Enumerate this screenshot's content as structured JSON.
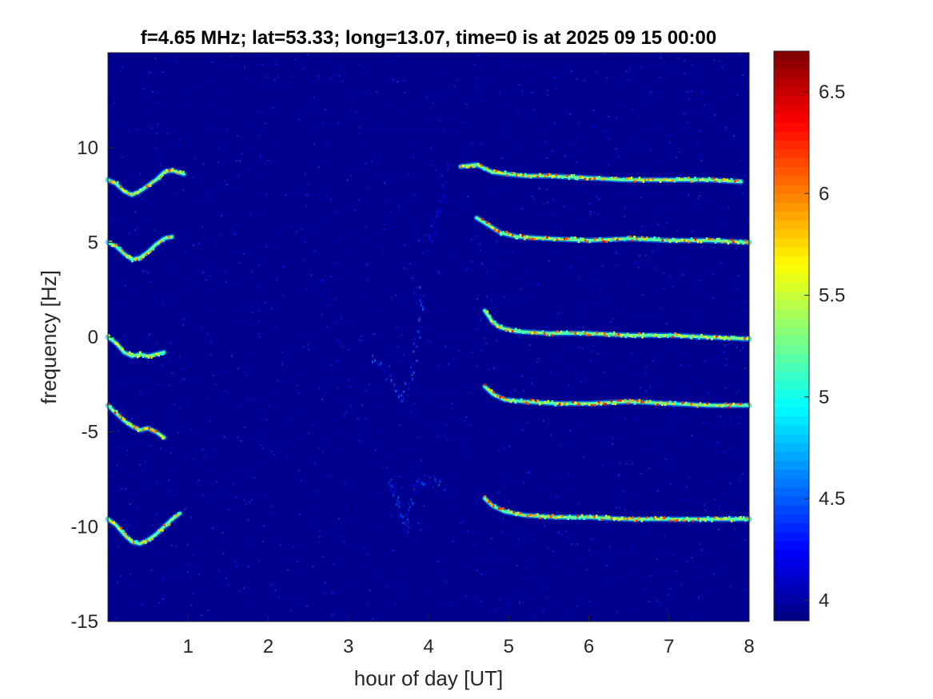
{
  "chart_data": {
    "type": "heatmap",
    "title": "f=4.65 MHz;  lat=53.33; long=13.07, time=0 is at 2025 09 15 00:00",
    "xlabel": "hour of day [UT]",
    "ylabel": "frequency [Hz]",
    "xlim": [
      0,
      8
    ],
    "ylim": [
      -15,
      15
    ],
    "x_ticks": [
      1,
      2,
      3,
      4,
      5,
      6,
      7,
      8
    ],
    "x_tick_labels": [
      "1",
      "2",
      "3",
      "4",
      "5",
      "6",
      "7",
      "8"
    ],
    "y_ticks": [
      -15,
      -10,
      -5,
      0,
      5,
      10
    ],
    "y_tick_labels": [
      "-15",
      "-10",
      "-5",
      "0",
      "5",
      "10"
    ],
    "colorbar": {
      "colormap": "jet",
      "range": [
        3.9,
        6.7
      ],
      "ticks": [
        4,
        4.5,
        5,
        5.5,
        6,
        6.5
      ],
      "tick_labels": [
        "4",
        "4.5",
        "5",
        "5.5",
        "6",
        "6.5"
      ]
    },
    "background_color": "#00008f",
    "traces": [
      {
        "name": "trace +8.5 Hz (early)",
        "points": [
          [
            0.0,
            8.3
          ],
          [
            0.1,
            8.1
          ],
          [
            0.2,
            7.7
          ],
          [
            0.3,
            7.5
          ],
          [
            0.4,
            7.7
          ],
          [
            0.5,
            8.0
          ],
          [
            0.6,
            8.3
          ],
          [
            0.7,
            8.7
          ],
          [
            0.8,
            8.8
          ],
          [
            0.95,
            8.6
          ]
        ],
        "peak": 6.2
      },
      {
        "name": "trace +5 Hz (early)",
        "points": [
          [
            0.0,
            5.0
          ],
          [
            0.1,
            4.8
          ],
          [
            0.2,
            4.4
          ],
          [
            0.3,
            4.1
          ],
          [
            0.4,
            4.2
          ],
          [
            0.5,
            4.5
          ],
          [
            0.6,
            4.9
          ],
          [
            0.7,
            5.2
          ],
          [
            0.8,
            5.3
          ]
        ],
        "peak": 6.0
      },
      {
        "name": "trace 0 Hz (early)",
        "points": [
          [
            0.0,
            0.0
          ],
          [
            0.1,
            -0.3
          ],
          [
            0.2,
            -0.8
          ],
          [
            0.3,
            -1.0
          ],
          [
            0.4,
            -0.9
          ],
          [
            0.5,
            -1.0
          ],
          [
            0.6,
            -0.9
          ],
          [
            0.7,
            -0.8
          ]
        ],
        "peak": 5.9
      },
      {
        "name": "trace -3.7 Hz (early)",
        "points": [
          [
            0.0,
            -3.6
          ],
          [
            0.1,
            -4.0
          ],
          [
            0.2,
            -4.4
          ],
          [
            0.3,
            -4.7
          ],
          [
            0.4,
            -4.9
          ],
          [
            0.5,
            -4.8
          ],
          [
            0.6,
            -5.0
          ],
          [
            0.7,
            -5.3
          ]
        ],
        "peak": 6.3
      },
      {
        "name": "trace -10 Hz (early)",
        "points": [
          [
            0.0,
            -9.6
          ],
          [
            0.1,
            -9.9
          ],
          [
            0.2,
            -10.4
          ],
          [
            0.3,
            -10.8
          ],
          [
            0.4,
            -10.9
          ],
          [
            0.5,
            -10.7
          ],
          [
            0.6,
            -10.4
          ],
          [
            0.7,
            -10.0
          ],
          [
            0.8,
            -9.6
          ],
          [
            0.9,
            -9.3
          ]
        ],
        "peak": 6.2
      },
      {
        "name": "trace +8.5 Hz (late)",
        "points": [
          [
            4.4,
            9.0
          ],
          [
            4.6,
            9.1
          ],
          [
            4.8,
            8.7
          ],
          [
            5.0,
            8.6
          ],
          [
            5.2,
            8.5
          ],
          [
            5.5,
            8.5
          ],
          [
            6.0,
            8.4
          ],
          [
            6.4,
            8.3
          ],
          [
            7.0,
            8.3
          ],
          [
            7.5,
            8.3
          ],
          [
            7.9,
            8.2
          ]
        ],
        "peak": 6.3
      },
      {
        "name": "trace +5 Hz (late)",
        "points": [
          [
            4.6,
            6.3
          ],
          [
            4.75,
            5.9
          ],
          [
            4.9,
            5.5
          ],
          [
            5.1,
            5.3
          ],
          [
            5.5,
            5.2
          ],
          [
            6.0,
            5.1
          ],
          [
            6.5,
            5.2
          ],
          [
            7.0,
            5.1
          ],
          [
            7.5,
            5.1
          ],
          [
            8.0,
            5.0
          ]
        ],
        "peak": 6.4
      },
      {
        "name": "trace 0 Hz (late)",
        "points": [
          [
            4.7,
            1.4
          ],
          [
            4.8,
            0.8
          ],
          [
            4.9,
            0.5
          ],
          [
            5.1,
            0.3
          ],
          [
            5.5,
            0.2
          ],
          [
            6.0,
            0.2
          ],
          [
            6.5,
            0.1
          ],
          [
            7.0,
            0.1
          ],
          [
            7.5,
            0.0
          ],
          [
            8.0,
            -0.1
          ]
        ],
        "peak": 6.3
      },
      {
        "name": "trace -3.5 Hz (late)",
        "points": [
          [
            4.7,
            -2.6
          ],
          [
            4.8,
            -3.0
          ],
          [
            4.95,
            -3.3
          ],
          [
            5.2,
            -3.4
          ],
          [
            5.6,
            -3.5
          ],
          [
            6.0,
            -3.5
          ],
          [
            6.5,
            -3.4
          ],
          [
            7.0,
            -3.5
          ],
          [
            7.5,
            -3.6
          ],
          [
            8.0,
            -3.6
          ]
        ],
        "peak": 6.4
      },
      {
        "name": "trace -9.5 Hz (late)",
        "points": [
          [
            4.7,
            -8.5
          ],
          [
            4.8,
            -8.9
          ],
          [
            4.95,
            -9.2
          ],
          [
            5.2,
            -9.4
          ],
          [
            5.6,
            -9.5
          ],
          [
            6.0,
            -9.5
          ],
          [
            6.5,
            -9.6
          ],
          [
            7.0,
            -9.6
          ],
          [
            7.5,
            -9.6
          ],
          [
            8.0,
            -9.6
          ]
        ],
        "peak": 6.3
      }
    ],
    "faint_traces": [
      {
        "name": "diffuse 2-4 h",
        "points": [
          [
            3.3,
            -1.0
          ],
          [
            3.5,
            -2.0
          ],
          [
            3.65,
            -3.5
          ],
          [
            3.8,
            -1.5
          ],
          [
            3.9,
            1.5
          ],
          [
            3.85,
            2.5
          ]
        ],
        "peak": 4.7
      },
      {
        "name": "diffuse 3.6-4.2 h low",
        "points": [
          [
            3.5,
            -7.5
          ],
          [
            3.6,
            -8.5
          ],
          [
            3.7,
            -10.0
          ],
          [
            3.8,
            -8.0
          ],
          [
            3.9,
            -7.5
          ],
          [
            4.2,
            -7.7
          ]
        ],
        "peak": 4.6
      },
      {
        "name": "diffuse 3.9 h upper",
        "points": [
          [
            4.0,
            5.0
          ],
          [
            4.1,
            6.5
          ],
          [
            4.2,
            8.0
          ]
        ],
        "peak": 4.4
      }
    ]
  }
}
